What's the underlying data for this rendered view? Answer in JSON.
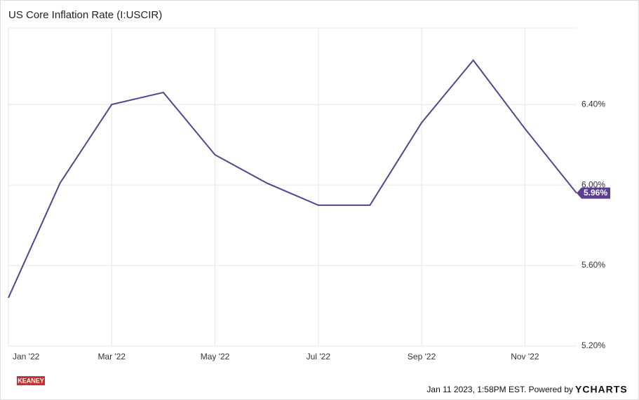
{
  "chart_data": {
    "type": "line",
    "title": "US Core Inflation Rate (I:USCIR)",
    "x": [
      0,
      1,
      2,
      3,
      4,
      5,
      6,
      7,
      8,
      9,
      10,
      11
    ],
    "series": [
      {
        "name": "US Core Inflation Rate",
        "color": "#5b3f94",
        "values": [
          5.44,
          6.01,
          6.4,
          6.46,
          6.15,
          6.01,
          5.9,
          5.9,
          6.31,
          6.62,
          6.28,
          5.96
        ],
        "value_labels": [
          null,
          null,
          null,
          null,
          null,
          null,
          null,
          null,
          null,
          null,
          null,
          "5.96%"
        ]
      }
    ],
    "xlim": [
      0,
      11
    ],
    "xticks": [
      {
        "value": 0,
        "label": "Jan '22"
      },
      {
        "value": 2,
        "label": "Mar '22"
      },
      {
        "value": 4,
        "label": "May '22"
      },
      {
        "value": 6,
        "label": "Jul '22"
      },
      {
        "value": 8,
        "label": "Sep '22"
      },
      {
        "value": 10,
        "label": "Nov '22"
      }
    ],
    "ylim": [
      5.2,
      6.78
    ],
    "yticks": [
      {
        "value": 5.2,
        "label": "5.20%"
      },
      {
        "value": 5.6,
        "label": "5.60%"
      },
      {
        "value": 6.0,
        "label": "6.00%"
      },
      {
        "value": 6.4,
        "label": "6.40%"
      }
    ],
    "grid": true
  },
  "footer": {
    "timestamp": "Jan 11 2023, 1:58PM EST. Powered by",
    "brand": "YCHARTS",
    "logo": "KEANEY"
  }
}
